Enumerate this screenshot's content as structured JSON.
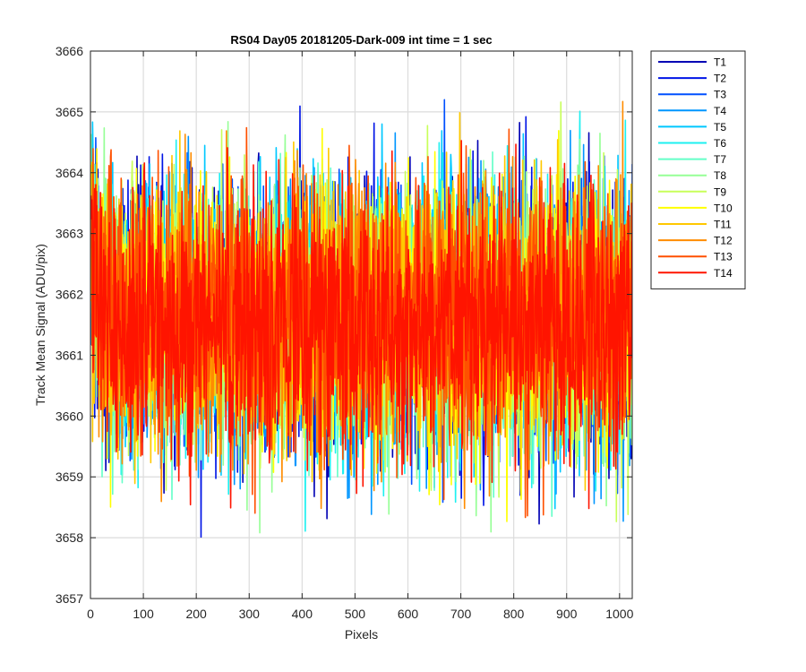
{
  "chart_data": {
    "type": "line",
    "title": "RS04 Day05 20181205-Dark-009 int time = 1 sec",
    "xlabel": "Pixels",
    "ylabel": "Track Mean Signal (ADU/pix)",
    "xlim": [
      0,
      1024
    ],
    "ylim": [
      3657,
      3666
    ],
    "xticks": [
      0,
      100,
      200,
      300,
      400,
      500,
      600,
      700,
      800,
      900,
      1000
    ],
    "yticks": [
      3657,
      3658,
      3659,
      3660,
      3661,
      3662,
      3663,
      3664,
      3665,
      3666
    ],
    "grid": true,
    "legend_position": "outside-top-right",
    "n_points": 1024,
    "typical_mean": 3661.6,
    "typical_spread": 1.1,
    "series": [
      {
        "name": "T1",
        "color": "#0000b4"
      },
      {
        "name": "T2",
        "color": "#0014e6"
      },
      {
        "name": "T3",
        "color": "#0050ff"
      },
      {
        "name": "T4",
        "color": "#0096ff"
      },
      {
        "name": "T5",
        "color": "#00c8ff"
      },
      {
        "name": "T6",
        "color": "#1ef0f0"
      },
      {
        "name": "T7",
        "color": "#64ffc8"
      },
      {
        "name": "T8",
        "color": "#96ff96"
      },
      {
        "name": "T9",
        "color": "#c8ff5a"
      },
      {
        "name": "T10",
        "color": "#ffff00"
      },
      {
        "name": "T11",
        "color": "#ffc800"
      },
      {
        "name": "T12",
        "color": "#ff8c00"
      },
      {
        "name": "T13",
        "color": "#ff5000"
      },
      {
        "name": "T14",
        "color": "#ff1400"
      }
    ]
  }
}
